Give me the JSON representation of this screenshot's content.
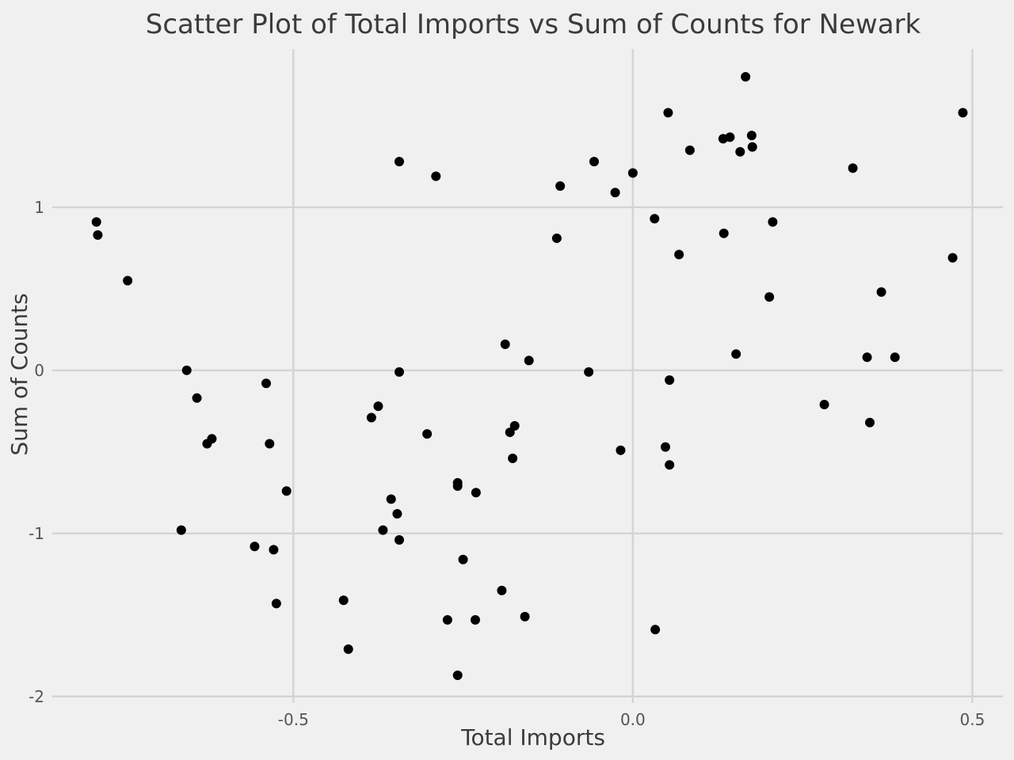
{
  "chart_data": {
    "type": "scatter",
    "title": "Scatter Plot of Total Imports vs Sum of Counts for Newark",
    "xlabel": "Total Imports",
    "ylabel": "Sum of Counts",
    "xlim": [
      -0.855,
      0.545
    ],
    "ylim": [
      -2.04,
      1.97
    ],
    "xticks": [
      -0.5,
      0.0,
      0.5
    ],
    "xtick_labels": [
      "-0.5",
      "0.0",
      "0.5"
    ],
    "yticks": [
      -2,
      -1,
      0,
      1
    ],
    "ytick_labels": [
      "-2",
      "-1",
      "0",
      "1"
    ],
    "grid": true,
    "legend": "none",
    "colors": {
      "background": "#f0f0f0",
      "grid": "#d4d4d4",
      "points": "#000000",
      "text": "#3b3b3b"
    },
    "series": [
      {
        "points": [
          {
            "x": 0.166,
            "y": 1.8
          },
          {
            "x": 0.052,
            "y": 1.58
          },
          {
            "x": 0.486,
            "y": 1.58
          },
          {
            "x": 0.133,
            "y": 1.42
          },
          {
            "x": 0.143,
            "y": 1.43
          },
          {
            "x": 0.175,
            "y": 1.44
          },
          {
            "x": 0.176,
            "y": 1.37
          },
          {
            "x": 0.158,
            "y": 1.34
          },
          {
            "x": 0.084,
            "y": 1.35
          },
          {
            "x": -0.344,
            "y": 1.28
          },
          {
            "x": -0.057,
            "y": 1.28
          },
          {
            "x": -0.29,
            "y": 1.19
          },
          {
            "x": 0.0,
            "y": 1.21
          },
          {
            "x": 0.324,
            "y": 1.24
          },
          {
            "x": -0.107,
            "y": 1.13
          },
          {
            "x": -0.026,
            "y": 1.09
          },
          {
            "x": 0.032,
            "y": 0.93
          },
          {
            "x": 0.206,
            "y": 0.91
          },
          {
            "x": -0.79,
            "y": 0.91
          },
          {
            "x": -0.788,
            "y": 0.83
          },
          {
            "x": 0.134,
            "y": 0.84
          },
          {
            "x": -0.112,
            "y": 0.81
          },
          {
            "x": 0.068,
            "y": 0.71
          },
          {
            "x": 0.471,
            "y": 0.69
          },
          {
            "x": -0.744,
            "y": 0.55
          },
          {
            "x": 0.366,
            "y": 0.48
          },
          {
            "x": 0.201,
            "y": 0.45
          },
          {
            "x": -0.188,
            "y": 0.16
          },
          {
            "x": 0.152,
            "y": 0.1
          },
          {
            "x": -0.153,
            "y": 0.06
          },
          {
            "x": 0.345,
            "y": 0.08
          },
          {
            "x": 0.386,
            "y": 0.08
          },
          {
            "x": -0.657,
            "y": 0.0
          },
          {
            "x": -0.344,
            "y": -0.01
          },
          {
            "x": -0.065,
            "y": -0.01
          },
          {
            "x": 0.054,
            "y": -0.06
          },
          {
            "x": -0.54,
            "y": -0.08
          },
          {
            "x": -0.642,
            "y": -0.17
          },
          {
            "x": 0.282,
            "y": -0.21
          },
          {
            "x": -0.375,
            "y": -0.22
          },
          {
            "x": -0.385,
            "y": -0.29
          },
          {
            "x": 0.349,
            "y": -0.32
          },
          {
            "x": -0.174,
            "y": -0.34
          },
          {
            "x": -0.303,
            "y": -0.39
          },
          {
            "x": -0.181,
            "y": -0.38
          },
          {
            "x": -0.62,
            "y": -0.42
          },
          {
            "x": -0.627,
            "y": -0.45
          },
          {
            "x": -0.535,
            "y": -0.45
          },
          {
            "x": 0.048,
            "y": -0.47
          },
          {
            "x": -0.018,
            "y": -0.49
          },
          {
            "x": -0.177,
            "y": -0.54
          },
          {
            "x": 0.054,
            "y": -0.58
          },
          {
            "x": -0.51,
            "y": -0.74
          },
          {
            "x": -0.258,
            "y": -0.69
          },
          {
            "x": -0.258,
            "y": -0.71
          },
          {
            "x": -0.231,
            "y": -0.75
          },
          {
            "x": -0.356,
            "y": -0.79
          },
          {
            "x": -0.347,
            "y": -0.88
          },
          {
            "x": -0.665,
            "y": -0.98
          },
          {
            "x": -0.368,
            "y": -0.98
          },
          {
            "x": -0.344,
            "y": -1.04
          },
          {
            "x": -0.557,
            "y": -1.08
          },
          {
            "x": -0.529,
            "y": -1.1
          },
          {
            "x": -0.25,
            "y": -1.16
          },
          {
            "x": -0.193,
            "y": -1.35
          },
          {
            "x": -0.426,
            "y": -1.41
          },
          {
            "x": -0.525,
            "y": -1.43
          },
          {
            "x": -0.159,
            "y": -1.51
          },
          {
            "x": -0.273,
            "y": -1.53
          },
          {
            "x": -0.232,
            "y": -1.53
          },
          {
            "x": 0.033,
            "y": -1.59
          },
          {
            "x": -0.419,
            "y": -1.71
          },
          {
            "x": -0.258,
            "y": -1.87
          }
        ]
      }
    ]
  }
}
